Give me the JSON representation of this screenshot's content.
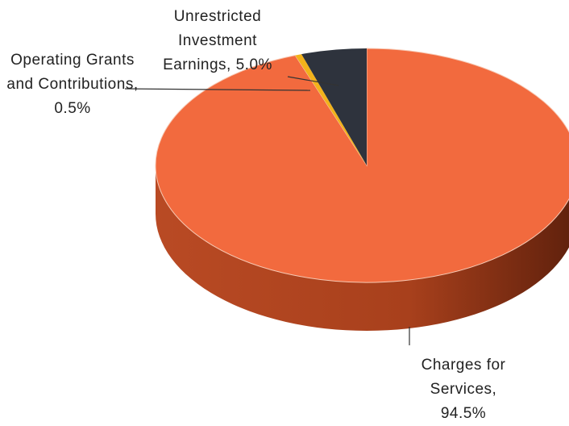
{
  "chart_data": {
    "type": "pie",
    "values": [
      94.5,
      0.5,
      5.0
    ],
    "value_labels": [
      "Charges for Services, 94.5%",
      "Operating Grants and Contributions, 0.5%",
      "Unrestricted Investment Earnings, 5.0%"
    ],
    "colors": [
      "#f26a3e",
      "#f2b21b",
      "#2e333d"
    ],
    "start_angle": 0,
    "direction": "clockwise",
    "three_d": true
  }
}
